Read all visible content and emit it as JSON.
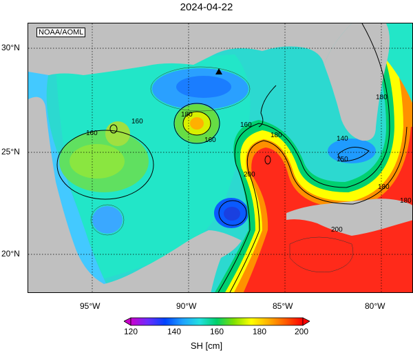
{
  "title": "2024-04-22",
  "source_label": "NOAA/AOML",
  "latitude_labels": [
    "30°N",
    "25°N",
    "20°N"
  ],
  "longitude_labels": [
    "95°W",
    "90°W",
    "85°W",
    "80°W"
  ],
  "colorbar": {
    "label": "SH [cm]",
    "ticks": [
      "120",
      "140",
      "160",
      "180",
      "200"
    ],
    "range": [
      120,
      200
    ],
    "colors": [
      "#cc00cc",
      "#6a2cff",
      "#0044ff",
      "#1ea0ff",
      "#22e0e0",
      "#00d06a",
      "#80e000",
      "#ffff00",
      "#ffb000",
      "#ff5a00",
      "#ff0000"
    ]
  },
  "contour_labels": [
    "160",
    "160",
    "180",
    "160",
    "160",
    "180",
    "180",
    "180",
    "140",
    "150",
    "180",
    "200",
    "200"
  ],
  "marker": {
    "name": "triangle",
    "color": "#000000"
  },
  "colors": {
    "land": "#c0c0c0",
    "warm_core": "#ff2a1a",
    "loop_current_edge": "#ffff00"
  }
}
